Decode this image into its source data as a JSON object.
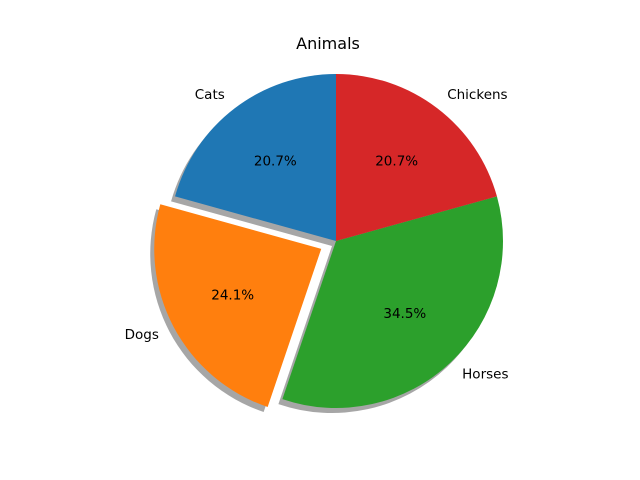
{
  "chart_data": {
    "type": "pie",
    "title": "Animals",
    "categories": [
      "Cats",
      "Dogs",
      "Horses",
      "Chickens"
    ],
    "values": [
      20.7,
      24.1,
      34.5,
      20.7
    ],
    "percent_labels": [
      "20.7%",
      "24.1%",
      "34.5%",
      "20.7%"
    ],
    "colors": [
      "#1f77b4",
      "#ff7f0e",
      "#2ca02c",
      "#d62728"
    ],
    "explode": [
      0,
      0.1,
      0,
      0
    ],
    "start_angle": 90,
    "shadow": true,
    "legend": "none"
  }
}
